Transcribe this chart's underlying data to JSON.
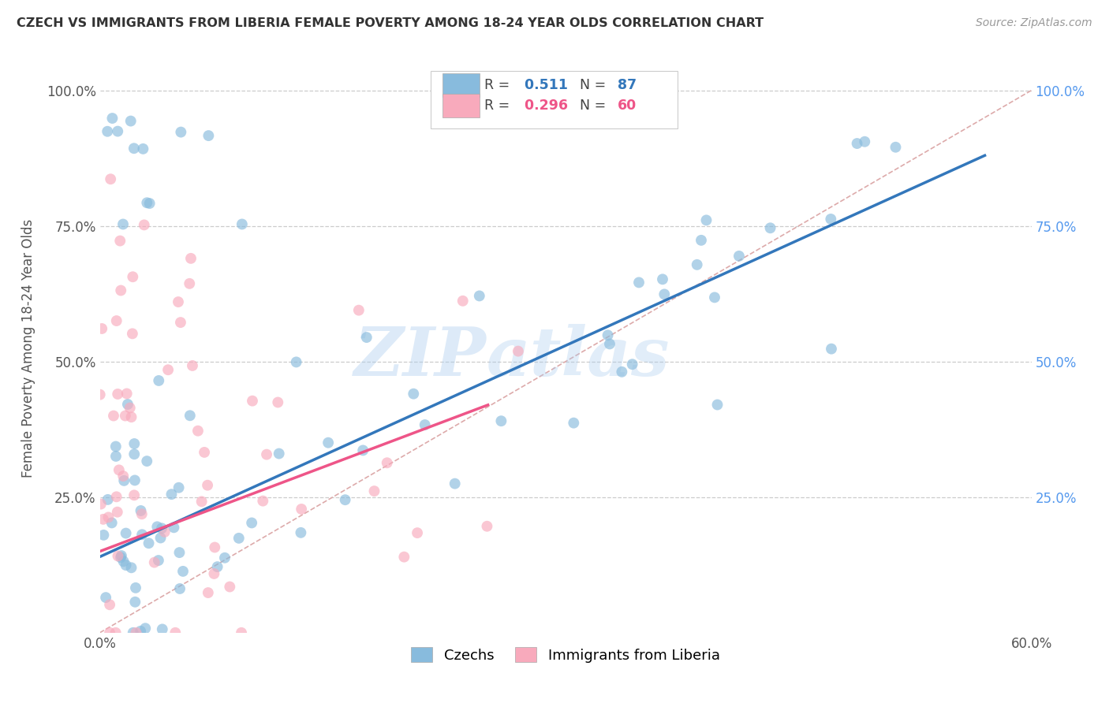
{
  "title": "CZECH VS IMMIGRANTS FROM LIBERIA FEMALE POVERTY AMONG 18-24 YEAR OLDS CORRELATION CHART",
  "source": "Source: ZipAtlas.com",
  "ylabel": "Female Poverty Among 18-24 Year Olds",
  "xlim": [
    0.0,
    0.6
  ],
  "ylim": [
    0.0,
    1.05
  ],
  "czech_R": 0.511,
  "czech_N": 87,
  "liberia_R": 0.296,
  "liberia_N": 60,
  "czech_color": "#88bbdd",
  "liberia_color": "#f8aabc",
  "czech_line_color": "#3377bb",
  "liberia_line_color": "#ee5588",
  "diagonal_color": "#ddaaaa",
  "background_color": "#ffffff",
  "grid_color": "#cccccc",
  "right_tick_color": "#5599ee",
  "legend_czech_label": "Czechs",
  "legend_liberia_label": "Immigrants from Liberia",
  "watermark_zip": "ZIP",
  "watermark_atlas": "atlas",
  "czech_line_x0": 0.0,
  "czech_line_y0": 0.14,
  "czech_line_x1": 0.57,
  "czech_line_y1": 0.88,
  "liberia_line_x0": 0.0,
  "liberia_line_y0": 0.15,
  "liberia_line_x1": 0.25,
  "liberia_line_y1": 0.42
}
